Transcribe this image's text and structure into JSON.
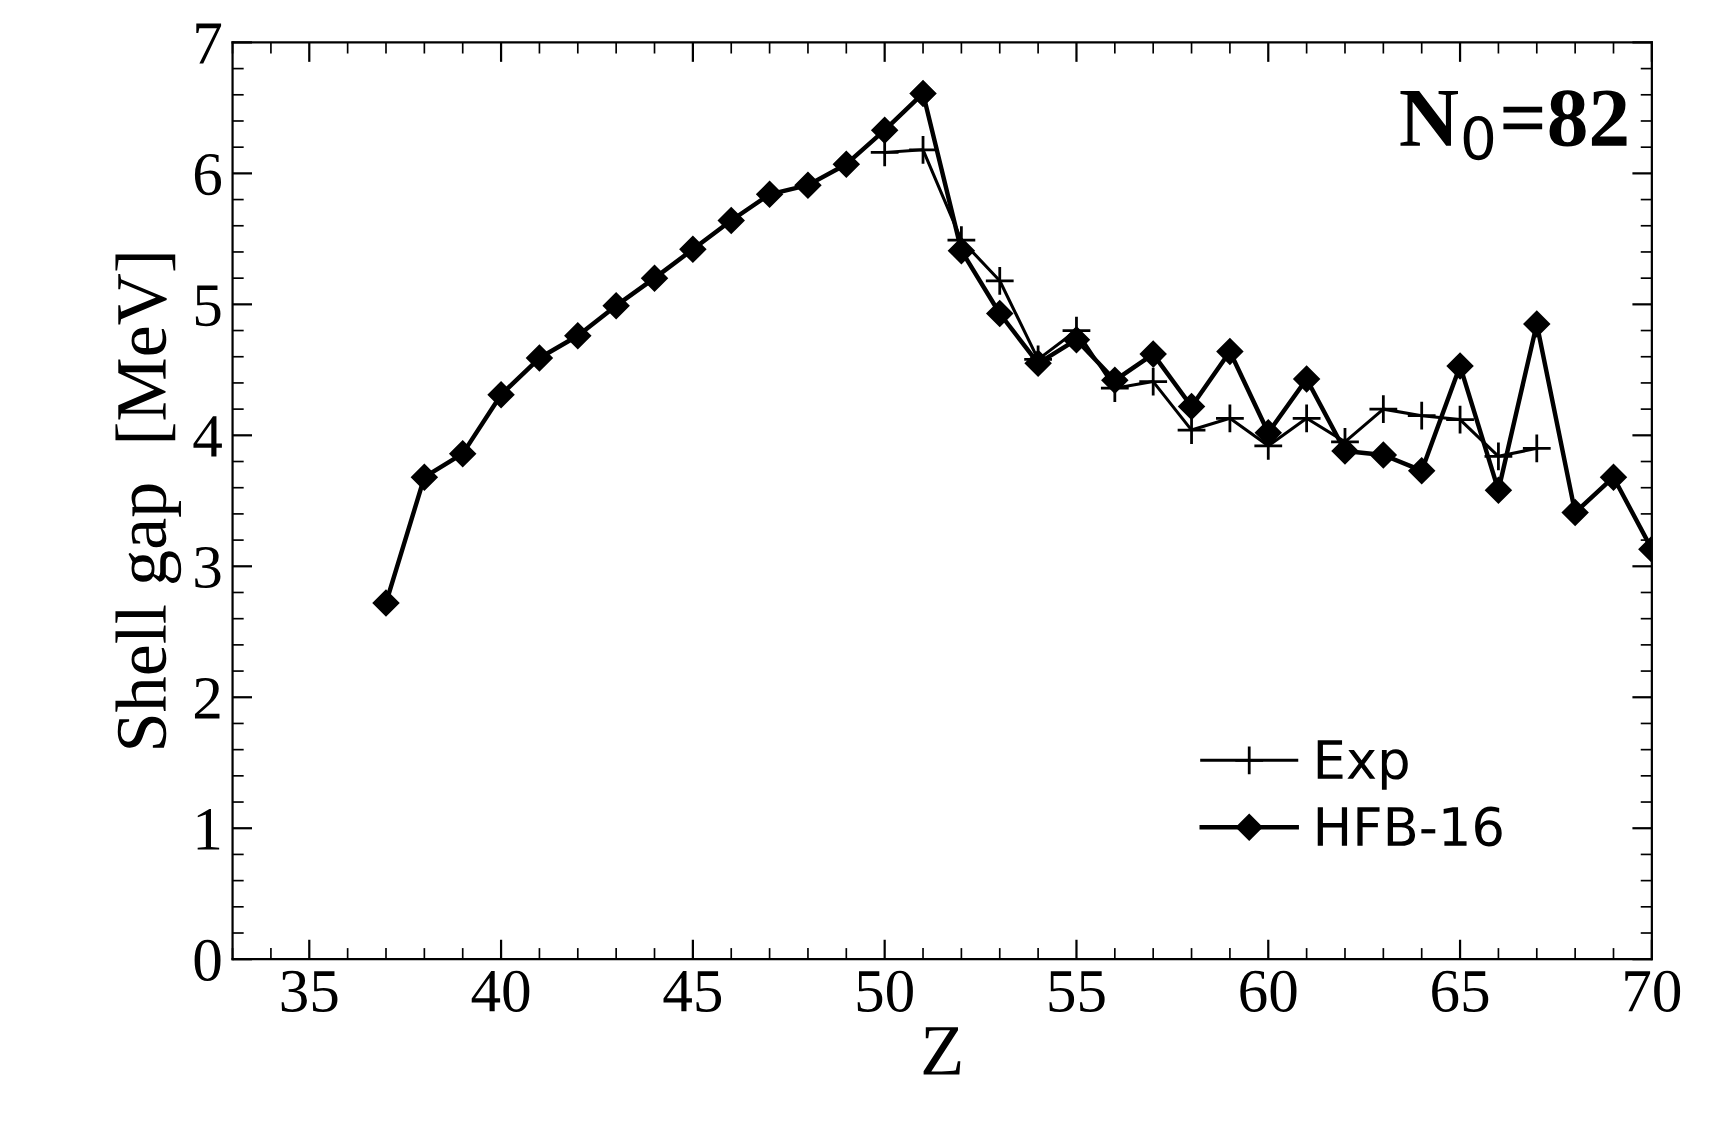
{
  "chart_data": {
    "type": "line",
    "xlabel": "Z",
    "ylabel": "Shell gap  [MeV]",
    "annotations": [
      "N$_{0}$=82"
    ],
    "xlim": [
      33,
      70
    ],
    "xticks": [
      35,
      40,
      45,
      50,
      55,
      60,
      65,
      70
    ],
    "ylim": [
      0,
      7
    ],
    "yticks": [
      0,
      1,
      2,
      3,
      4,
      5,
      6,
      7
    ],
    "legend": "bottom right",
    "grid": false,
    "line_style": "solid",
    "series": [
      {
        "name": "Exp",
        "color": "#000000",
        "marker": "cross",
        "x": [
          50,
          51,
          52,
          53,
          54,
          55,
          56,
          57,
          58,
          59,
          60,
          61,
          62,
          63,
          64,
          65,
          66,
          67
        ],
        "values": [
          6.16,
          6.18,
          5.49,
          5.18,
          4.58,
          4.8,
          4.36,
          4.41,
          4.04,
          4.13,
          3.92,
          4.13,
          3.95,
          4.2,
          4.15,
          4.12,
          3.84,
          3.9
        ]
      },
      {
        "name": "HFB-16",
        "color": "#000000",
        "marker": "diamond",
        "x": [
          37,
          38,
          39,
          40,
          41,
          42,
          43,
          44,
          45,
          46,
          47,
          48,
          49,
          50,
          51,
          52,
          53,
          54,
          55,
          56,
          57,
          58,
          59,
          60,
          61,
          62,
          63,
          64,
          65,
          66,
          67,
          68,
          69,
          70
        ],
        "values": [
          2.72,
          3.68,
          3.86,
          4.31,
          4.59,
          4.76,
          4.99,
          5.2,
          5.42,
          5.64,
          5.84,
          5.91,
          6.07,
          6.33,
          6.61,
          5.41,
          4.93,
          4.55,
          4.73,
          4.42,
          4.62,
          4.22,
          4.64,
          4.02,
          4.43,
          3.88,
          3.85,
          3.73,
          4.53,
          3.58,
          4.85,
          3.41,
          3.68,
          3.13
        ]
      }
    ]
  }
}
